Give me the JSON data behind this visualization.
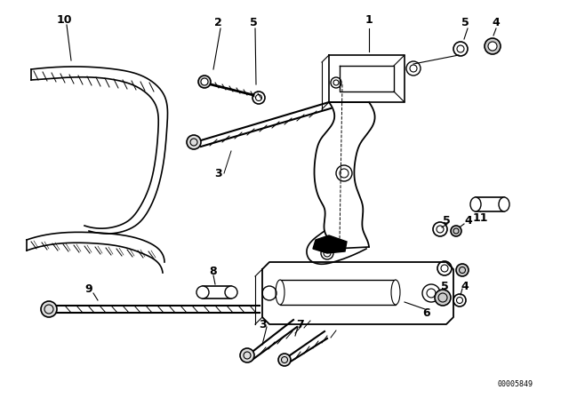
{
  "bg_color": "#ffffff",
  "line_color": "#000000",
  "diagram_code": "00005849",
  "figsize": [
    6.4,
    4.48
  ],
  "dpi": 100
}
